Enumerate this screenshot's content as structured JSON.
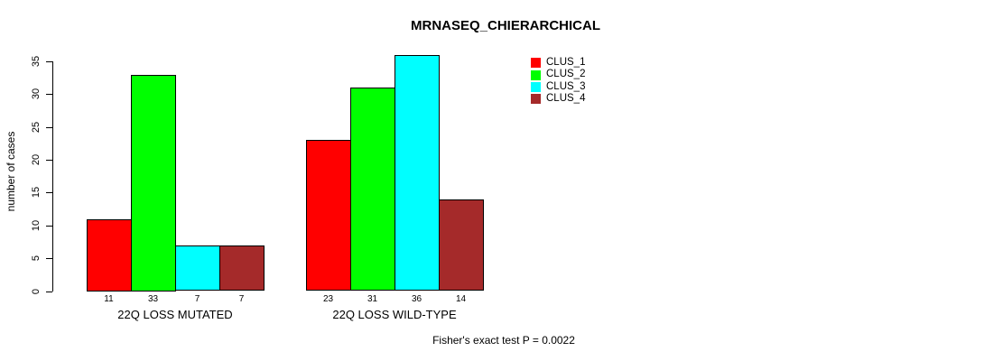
{
  "title": "MRNASEQ_CHIERARCHICAL",
  "footer": "Fisher's exact test P = 0.0022",
  "chart_data": {
    "type": "bar",
    "title": "MRNASEQ_CHIERARCHICAL",
    "xlabel": "",
    "ylabel": "number of cases",
    "ylim": [
      0,
      36
    ],
    "yticks": [
      0,
      5,
      10,
      15,
      20,
      25,
      30,
      35
    ],
    "grid": false,
    "legend_position": "top-right",
    "bar_value_labels": true,
    "categories": [
      "22Q LOSS MUTATED",
      "22Q LOSS WILD-TYPE"
    ],
    "series": [
      {
        "name": "CLUS_1",
        "color": "#ff0000",
        "values": [
          11,
          23
        ]
      },
      {
        "name": "CLUS_2",
        "color": "#00ff00",
        "values": [
          33,
          31
        ]
      },
      {
        "name": "CLUS_3",
        "color": "#00ffff",
        "values": [
          7,
          36
        ]
      },
      {
        "name": "CLUS_4",
        "color": "#a52a2a",
        "values": [
          7,
          14
        ]
      }
    ],
    "annotation": "Fisher's exact test P = 0.0022"
  }
}
